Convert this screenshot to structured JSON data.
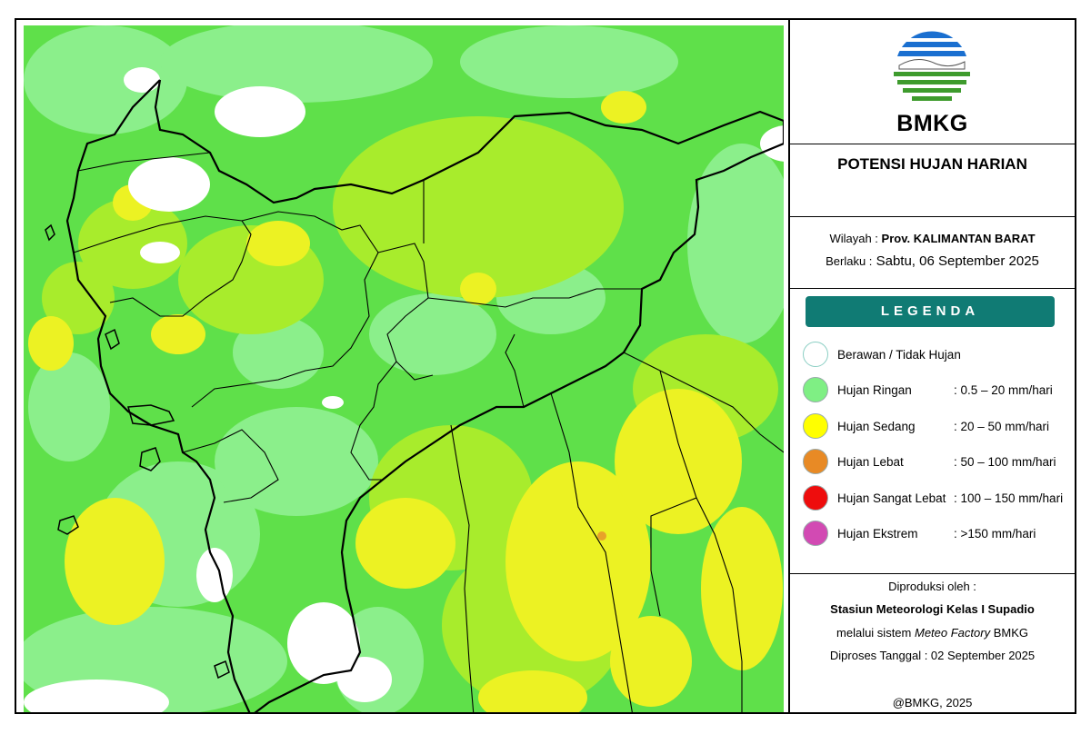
{
  "brand": {
    "name": "BMKG"
  },
  "title": "POTENSI HUJAN HARIAN",
  "region": {
    "label": "Wilayah :",
    "value": "Prov. KALIMANTAN BARAT",
    "valid_label": "Berlaku :",
    "valid_value": "Sabtu, 06 September 2025"
  },
  "legend": {
    "header": "LEGENDA",
    "items": [
      {
        "label": "Berawan / Tidak Hujan",
        "range": "",
        "color": "#ffffff"
      },
      {
        "label": "Hujan Ringan",
        "range": ": 0.5 – 20 mm/hari",
        "color": "#7fef84"
      },
      {
        "label": "Hujan Sedang",
        "range": ": 20 – 50 mm/hari",
        "color": "#ffff00"
      },
      {
        "label": "Hujan Lebat",
        "range": ": 50 – 100 mm/hari",
        "color": "#e88a25"
      },
      {
        "label": "Hujan Sangat Lebat",
        "range": ": 100 – 150 mm/hari",
        "color": "#ee0d0d"
      },
      {
        "label": "Hujan Ekstrem",
        "range": ": >150 mm/hari",
        "color": "#d24ab3"
      }
    ]
  },
  "credits": {
    "produced_by": "Diproduksi oleh :",
    "station": "Stasiun Meteorologi Kelas I Supadio",
    "system_prefix": "melalui sistem ",
    "system_name": "Meteo Factory",
    "system_suffix": " BMKG",
    "processed": "Diproses Tanggal : 02 September 2025",
    "copyright": "@BMKG, 2025"
  },
  "colors": {
    "green_mid": "#5fe04a",
    "green_light": "#8bef8b",
    "yellow_green": "#a8ec2c",
    "yellow": "#ecf223",
    "header_teal": "#107b74",
    "logo_blue": "#1a6fd0",
    "logo_green": "#3e9b2d"
  }
}
